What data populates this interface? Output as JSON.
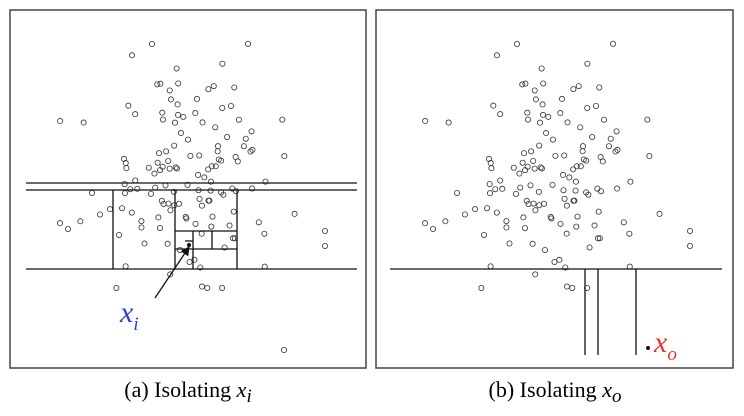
{
  "panels": [
    {
      "caption": {
        "prefix": "(a) Isolating",
        "var": "x",
        "sub": "i"
      },
      "label": {
        "var": "x",
        "sub": "i"
      }
    },
    {
      "caption": {
        "prefix": "(b) Isolating",
        "var": "x",
        "sub": "o"
      },
      "label": {
        "var": "x",
        "sub": "o"
      }
    }
  ]
}
